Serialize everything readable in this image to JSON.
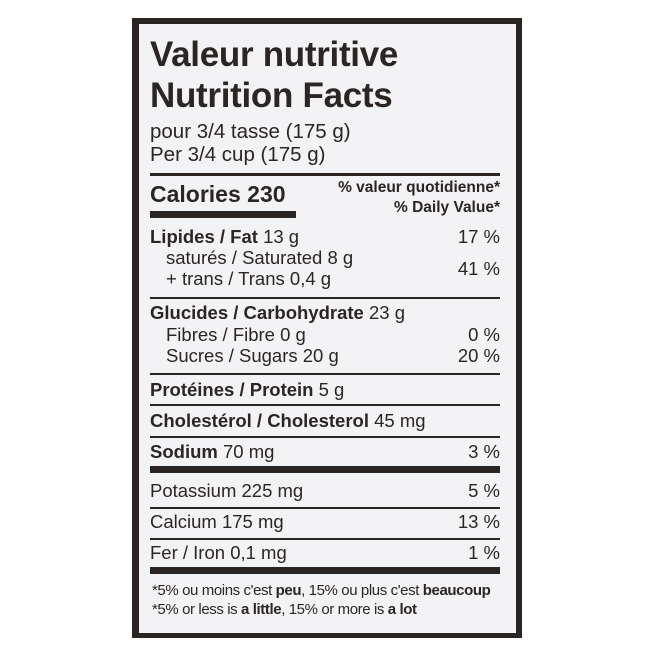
{
  "title_fr": "Valeur nutritive",
  "title_en": "Nutrition Facts",
  "serving_fr": "pour 3/4 tasse (175 g)",
  "serving_en": "Per 3/4 cup (175 g)",
  "calories_label": "Calories 230",
  "dv_fr": "% valeur quotidienne*",
  "dv_en": "% Daily Value*",
  "rows": {
    "fat": {
      "label": "Lipides / Fat",
      "amount": "13 g",
      "dv": "17 %"
    },
    "saturated": {
      "label": "saturés / Saturated 8 g"
    },
    "trans": {
      "label": "+ trans / Trans 0,4 g",
      "dv": "41 %"
    },
    "carb": {
      "label": "Glucides / Carbohydrate",
      "amount": "23 g"
    },
    "fibre": {
      "label": "Fibres / Fibre 0 g",
      "dv": "0 %"
    },
    "sugars": {
      "label": "Sucres / Sugars 20 g",
      "dv": "20 %"
    },
    "protein": {
      "label": "Protéines / Protein",
      "amount": "5 g"
    },
    "cholesterol": {
      "label": "Cholestérol / Cholesterol",
      "amount": "45 mg"
    },
    "sodium": {
      "label": "Sodium",
      "amount": "70 mg",
      "dv": "3 %"
    },
    "potassium": {
      "label": "Potassium 225 mg",
      "dv": "5 %"
    },
    "calcium": {
      "label": "Calcium 175 mg",
      "dv": "13 %"
    },
    "iron": {
      "label": "Fer / Iron 0,1 mg",
      "dv": "1 %"
    }
  },
  "footnote_fr": {
    "a": "*5% ou moins c'est ",
    "b": "peu",
    "c": ", 15% ou plus c'est ",
    "d": "beaucoup"
  },
  "footnote_en": {
    "a": "*5% or less is ",
    "b": "a little",
    "c": ", 15% or more is ",
    "d": "a lot"
  }
}
